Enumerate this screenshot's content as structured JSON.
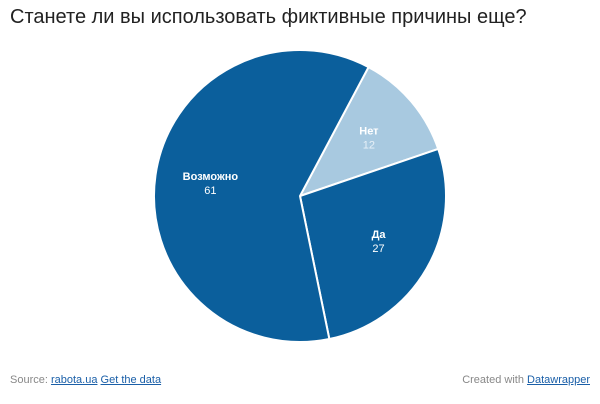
{
  "title": "Станете ли вы использовать фиктивные причины еще?",
  "chart_data": {
    "type": "pie",
    "categories": [
      "Нет",
      "Да",
      "Возможно"
    ],
    "values": [
      12,
      27,
      61
    ],
    "colors": [
      "#a8c9e0",
      "#0b5f9c",
      "#0b5f9c"
    ],
    "label_colors": [
      "#ffffff",
      "#ffffff",
      "#ffffff"
    ],
    "value_colors": [
      "#e8f1f8",
      "#ffffff",
      "#ffffff"
    ],
    "start": "clockwise from about 1 o'clock"
  },
  "footer": {
    "source_label": "Source:",
    "source_link": "rabota.ua",
    "data_link": "Get the data",
    "credit_label": "Created with",
    "credit_link": "Datawrapper"
  }
}
